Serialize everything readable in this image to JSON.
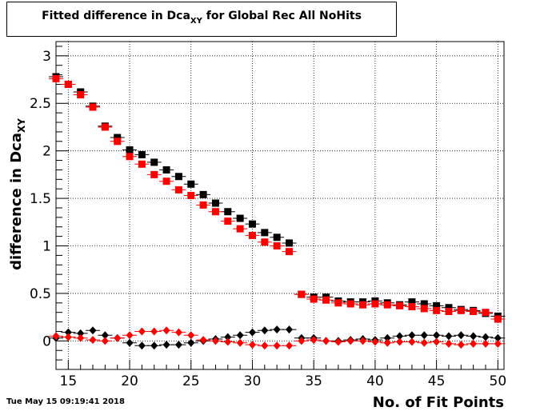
{
  "chart_data": {
    "type": "scatter",
    "title": {
      "main": "Fitted difference in Dca",
      "sub": "XY",
      "rest": " for Global Rec All NoHits"
    },
    "xlabel": "No. of Fit Points",
    "ylabel": {
      "main": "difference in Dca",
      "sub": "XY"
    },
    "xlim": [
      14,
      50.5
    ],
    "ylim": [
      -0.3,
      3.15
    ],
    "xticks": [
      15,
      20,
      25,
      30,
      35,
      40,
      45,
      50
    ],
    "xtick_labels": [
      "15",
      "20",
      "25",
      "30",
      "35",
      "40",
      "45",
      "50"
    ],
    "yticks": [
      0,
      0.5,
      1,
      1.5,
      2,
      2.5,
      3
    ],
    "ytick_labels": [
      "0",
      "0.5",
      "1",
      "1.5",
      "2",
      "2.5",
      "3"
    ],
    "grid": true,
    "x": [
      14,
      15,
      16,
      17,
      18,
      19,
      20,
      21,
      22,
      23,
      24,
      25,
      26,
      27,
      28,
      29,
      30,
      31,
      32,
      33,
      34,
      35,
      36,
      37,
      38,
      39,
      40,
      41,
      42,
      43,
      44,
      45,
      46,
      47,
      48,
      49,
      50
    ],
    "series": [
      {
        "marker": "square",
        "color": "#000000",
        "values": [
          2.78,
          2.7,
          2.62,
          2.47,
          2.26,
          2.14,
          2.01,
          1.96,
          1.88,
          1.8,
          1.73,
          1.65,
          1.54,
          1.45,
          1.36,
          1.29,
          1.23,
          1.14,
          1.09,
          1.03,
          0.49,
          0.46,
          0.46,
          0.42,
          0.41,
          0.41,
          0.42,
          0.4,
          0.38,
          0.41,
          0.39,
          0.37,
          0.35,
          0.33,
          0.32,
          0.29,
          0.26
        ]
      },
      {
        "marker": "square",
        "color": "#ff0000",
        "values": [
          2.76,
          2.7,
          2.59,
          2.46,
          2.25,
          2.1,
          1.94,
          1.86,
          1.75,
          1.68,
          1.59,
          1.53,
          1.43,
          1.36,
          1.26,
          1.18,
          1.11,
          1.04,
          1.0,
          0.94,
          0.49,
          0.44,
          0.43,
          0.4,
          0.39,
          0.38,
          0.39,
          0.38,
          0.37,
          0.36,
          0.34,
          0.32,
          0.31,
          0.32,
          0.31,
          0.3,
          0.23
        ]
      },
      {
        "marker": "diamond",
        "color": "#000000",
        "values": [
          0.03,
          0.09,
          0.08,
          0.11,
          0.06,
          0.03,
          -0.02,
          -0.05,
          -0.05,
          -0.04,
          -0.04,
          -0.02,
          0.0,
          0.02,
          0.04,
          0.06,
          0.09,
          0.11,
          0.12,
          0.12,
          0.03,
          0.03,
          0.0,
          0.0,
          0.01,
          0.02,
          0.01,
          0.03,
          0.05,
          0.06,
          0.06,
          0.06,
          0.05,
          0.06,
          0.05,
          0.04,
          0.03
        ]
      },
      {
        "marker": "diamond",
        "color": "#ff0000",
        "values": [
          0.05,
          0.04,
          0.03,
          0.01,
          0.0,
          0.03,
          0.06,
          0.1,
          0.1,
          0.11,
          0.09,
          0.06,
          0.01,
          0.0,
          -0.01,
          -0.02,
          -0.04,
          -0.05,
          -0.05,
          -0.05,
          0.0,
          0.01,
          0.0,
          -0.01,
          0.0,
          0.0,
          -0.01,
          -0.02,
          -0.01,
          -0.01,
          -0.02,
          -0.01,
          -0.03,
          -0.04,
          -0.03,
          -0.03,
          -0.03
        ]
      }
    ]
  },
  "timestamp": "Tue May 15 09:19:41 2018"
}
